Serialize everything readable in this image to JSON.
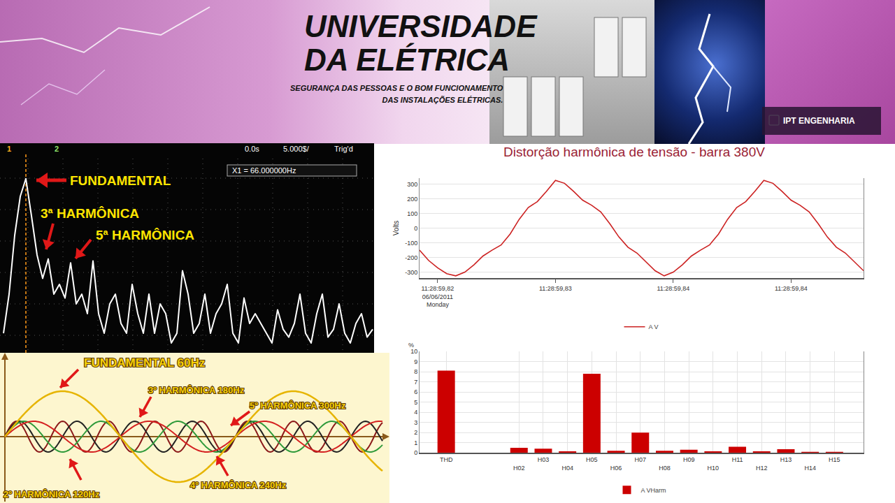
{
  "banner": {
    "title_lines": [
      "UNIVERSIDADE",
      "DA ELÉTRICA"
    ],
    "subtitle_lines": [
      "SEGURANÇA DAS PESSOAS E O BOM FUNCIONAMENTO",
      "DAS INSTALAÇÕES ELÉTRICAS."
    ],
    "badge": "IPT ENGENHARIA"
  },
  "oscilloscope": {
    "header": {
      "channel1": "1",
      "channel2": "2",
      "time": "0.0s",
      "scale": "5.000$/",
      "trigger": "Trig'd"
    },
    "readout": "X1 = 66.000000Hz",
    "labels": [
      "FUNDAMENTAL",
      "3ª HARMÔNICA",
      "5ª HARMÔNICA"
    ],
    "trace": [
      0.1,
      0.3,
      0.6,
      0.8,
      0.89,
      0.7,
      0.5,
      0.38,
      0.48,
      0.3,
      0.35,
      0.28,
      0.46,
      0.25,
      0.3,
      0.2,
      0.47,
      0.2,
      0.1,
      0.25,
      0.3,
      0.15,
      0.1,
      0.35,
      0.2,
      0.1,
      0.3,
      0.1,
      0.25,
      0.2,
      0.05,
      0.1,
      0.42,
      0.3,
      0.1,
      0.15,
      0.3,
      0.1,
      0.2,
      0.25,
      0.35,
      0.1,
      0.05,
      0.28,
      0.15,
      0.2,
      0.15,
      0.1,
      0.05,
      0.22,
      0.12,
      0.08,
      0.15,
      0.3,
      0.1,
      0.05,
      0.2,
      0.3,
      0.08,
      0.12,
      0.25,
      0.1,
      0.05,
      0.15,
      0.2,
      0.08,
      0.12
    ]
  },
  "illustration": {
    "waves": [
      {
        "label": "FUNDAMENTAL 60Hz",
        "order": 1,
        "color": "#e6b400"
      },
      {
        "label": "2º HARMÔNICA 120Hz",
        "order": 2,
        "color": "#d42020"
      },
      {
        "label": "3º HARMÔNICA 180Hz",
        "order": 3,
        "color": "#2e9a3a"
      },
      {
        "label": "4º HARMÔNICA 240Hz",
        "order": 4,
        "color": "#222222"
      },
      {
        "label": "5º HARMÔNICA 300Hz",
        "order": 5,
        "color": "#8b1a1a"
      }
    ]
  },
  "chart_data": [
    {
      "type": "line",
      "title": "Distorção harmônica de tensão - barra 380V",
      "y_label": "Volts",
      "categories": [
        null,
        null,
        "11:28:59,82\n06/06/2011\nMonday",
        null,
        null,
        null,
        null,
        null,
        null,
        null,
        null,
        null,
        null,
        null,
        null,
        "11:28:59,83",
        null,
        null,
        null,
        null,
        null,
        null,
        null,
        null,
        null,
        null,
        null,
        null,
        "11:28:59,84",
        null,
        null,
        null,
        null,
        null,
        null,
        null,
        null,
        null,
        null,
        null,
        null,
        "11:28:59,84",
        null,
        null,
        null,
        null,
        null,
        null,
        null,
        null
      ],
      "series": [
        {
          "name": "A V",
          "color": "#cc2222",
          "values": [
            -150,
            -220,
            -270,
            -310,
            -325,
            -300,
            -250,
            -190,
            -150,
            -115,
            -40,
            60,
            140,
            180,
            250,
            325,
            305,
            250,
            190,
            155,
            110,
            30,
            -60,
            -130,
            -170,
            -230,
            -290,
            -325,
            -300,
            -250,
            -190,
            -150,
            -115,
            -40,
            60,
            140,
            180,
            250,
            325,
            305,
            250,
            190,
            155,
            110,
            30,
            -60,
            -130,
            -170,
            -230,
            -290
          ]
        }
      ],
      "ylim": [
        -340,
        340
      ],
      "yticks": [
        -300,
        -200,
        -100,
        0,
        100,
        200,
        300
      ],
      "grid": true,
      "legend": "bottom"
    },
    {
      "type": "bar",
      "y_label": "%",
      "categories": [
        "THD",
        null,
        null,
        "H02",
        "H03",
        "H04",
        "H05",
        "H06",
        "H07",
        "H08",
        "H09",
        "H10",
        "H11",
        "H12",
        "H13",
        "H14",
        "H15"
      ],
      "series": [
        {
          "name": "A VHarm",
          "color": "#cc0000",
          "values": [
            8.1,
            null,
            null,
            0.5,
            0.4,
            0.15,
            7.8,
            0.2,
            2.0,
            0.2,
            0.3,
            0.15,
            0.6,
            0.15,
            0.35,
            0.1,
            0.1
          ]
        }
      ],
      "ylim": [
        0,
        10
      ],
      "yticks": [
        0,
        1,
        2,
        3,
        4,
        5,
        6,
        7,
        8,
        9,
        10
      ],
      "grid": true,
      "legend": "bottom"
    }
  ]
}
